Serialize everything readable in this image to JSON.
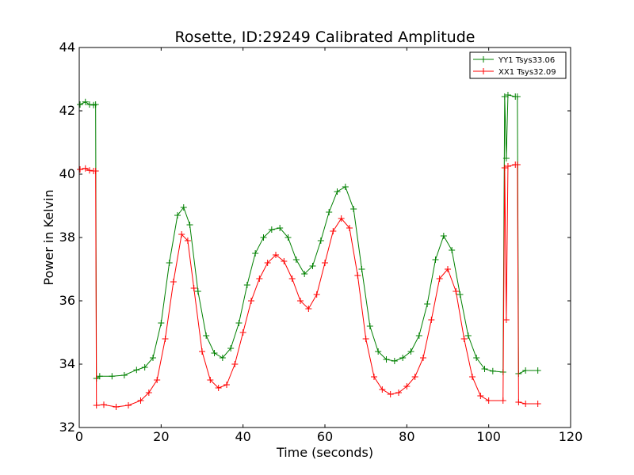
{
  "chart_data": {
    "type": "line",
    "title": "Rosette, ID:29249 Calibrated Amplitude",
    "xlabel": "Time (seconds)",
    "ylabel": "Power in Kelvin",
    "xlim": [
      0,
      120
    ],
    "ylim": [
      32,
      44
    ],
    "xticks": [
      0,
      20,
      40,
      60,
      80,
      100,
      120
    ],
    "yticks": [
      32,
      34,
      36,
      38,
      40,
      42,
      44
    ],
    "grid": false,
    "legend_position": "top-right",
    "marker": "plus",
    "series": [
      {
        "name": "YY1 Tsys33.06",
        "color": "#008000",
        "points": [
          [
            0.2,
            42.2
          ],
          [
            1.5,
            42.28
          ],
          [
            2.5,
            42.2
          ],
          [
            3.5,
            42.18
          ],
          [
            4.0,
            42.2
          ],
          [
            4.2,
            33.55
          ],
          [
            5.0,
            33.62
          ],
          [
            8.0,
            33.62
          ],
          [
            11.0,
            33.65
          ],
          [
            14.0,
            33.82
          ],
          [
            16.0,
            33.9
          ],
          [
            18.0,
            34.2
          ],
          [
            20.0,
            35.3
          ],
          [
            22.0,
            37.2
          ],
          [
            24.0,
            38.7
          ],
          [
            25.5,
            38.95
          ],
          [
            27.0,
            38.4
          ],
          [
            29.0,
            36.3
          ],
          [
            31.0,
            34.9
          ],
          [
            33.0,
            34.35
          ],
          [
            35.0,
            34.2
          ],
          [
            37.0,
            34.5
          ],
          [
            39.0,
            35.3
          ],
          [
            41.0,
            36.5
          ],
          [
            43.0,
            37.5
          ],
          [
            45.0,
            38.0
          ],
          [
            47.0,
            38.25
          ],
          [
            49.0,
            38.3
          ],
          [
            51.0,
            38.0
          ],
          [
            53.0,
            37.3
          ],
          [
            55.0,
            36.85
          ],
          [
            57.0,
            37.1
          ],
          [
            59.0,
            37.9
          ],
          [
            61.0,
            38.8
          ],
          [
            63.0,
            39.45
          ],
          [
            65.0,
            39.6
          ],
          [
            67.0,
            38.9
          ],
          [
            69.0,
            37.0
          ],
          [
            71.0,
            35.2
          ],
          [
            73.0,
            34.4
          ],
          [
            75.0,
            34.15
          ],
          [
            77.0,
            34.1
          ],
          [
            79.0,
            34.2
          ],
          [
            81.0,
            34.4
          ],
          [
            83.0,
            34.9
          ],
          [
            85.0,
            35.9
          ],
          [
            87.0,
            37.3
          ],
          [
            89.0,
            38.05
          ],
          [
            91.0,
            37.6
          ],
          [
            93.0,
            36.2
          ],
          [
            95.0,
            34.9
          ],
          [
            97.0,
            34.2
          ],
          [
            99.0,
            33.85
          ],
          [
            101.0,
            33.78
          ],
          [
            103.5,
            33.75
          ],
          [
            103.9,
            42.45
          ],
          [
            104.3,
            40.5
          ],
          [
            104.7,
            42.5
          ],
          [
            106.5,
            42.45
          ],
          [
            107.0,
            42.45
          ],
          [
            107.3,
            33.7
          ],
          [
            109.0,
            33.8
          ],
          [
            112.0,
            33.8
          ]
        ]
      },
      {
        "name": "XX1 Tsys32.09",
        "color": "#ff0000",
        "points": [
          [
            0.2,
            40.15
          ],
          [
            1.5,
            40.18
          ],
          [
            2.5,
            40.12
          ],
          [
            3.5,
            40.1
          ],
          [
            4.0,
            40.1
          ],
          [
            4.2,
            32.7
          ],
          [
            6.0,
            32.72
          ],
          [
            9.0,
            32.65
          ],
          [
            12.0,
            32.7
          ],
          [
            15.0,
            32.85
          ],
          [
            17.0,
            33.1
          ],
          [
            19.0,
            33.5
          ],
          [
            21.0,
            34.8
          ],
          [
            23.0,
            36.6
          ],
          [
            25.0,
            38.1
          ],
          [
            26.5,
            37.9
          ],
          [
            28.0,
            36.4
          ],
          [
            30.0,
            34.4
          ],
          [
            32.0,
            33.5
          ],
          [
            34.0,
            33.25
          ],
          [
            36.0,
            33.35
          ],
          [
            38.0,
            34.0
          ],
          [
            40.0,
            35.0
          ],
          [
            42.0,
            36.0
          ],
          [
            44.0,
            36.7
          ],
          [
            46.0,
            37.2
          ],
          [
            48.0,
            37.45
          ],
          [
            50.0,
            37.25
          ],
          [
            52.0,
            36.7
          ],
          [
            54.0,
            36.0
          ],
          [
            56.0,
            35.75
          ],
          [
            58.0,
            36.2
          ],
          [
            60.0,
            37.2
          ],
          [
            62.0,
            38.2
          ],
          [
            64.0,
            38.6
          ],
          [
            66.0,
            38.3
          ],
          [
            68.0,
            36.8
          ],
          [
            70.0,
            34.8
          ],
          [
            72.0,
            33.6
          ],
          [
            74.0,
            33.2
          ],
          [
            76.0,
            33.05
          ],
          [
            78.0,
            33.1
          ],
          [
            80.0,
            33.3
          ],
          [
            82.0,
            33.6
          ],
          [
            84.0,
            34.2
          ],
          [
            86.0,
            35.4
          ],
          [
            88.0,
            36.7
          ],
          [
            90.0,
            37.0
          ],
          [
            92.0,
            36.3
          ],
          [
            94.0,
            34.8
          ],
          [
            96.0,
            33.6
          ],
          [
            98.0,
            33.0
          ],
          [
            100.0,
            32.85
          ],
          [
            103.5,
            32.85
          ],
          [
            103.9,
            40.2
          ],
          [
            104.3,
            35.4
          ],
          [
            104.7,
            40.25
          ],
          [
            106.5,
            40.3
          ],
          [
            107.0,
            40.3
          ],
          [
            107.3,
            32.8
          ],
          [
            109.0,
            32.75
          ],
          [
            112.0,
            32.75
          ]
        ]
      }
    ]
  }
}
